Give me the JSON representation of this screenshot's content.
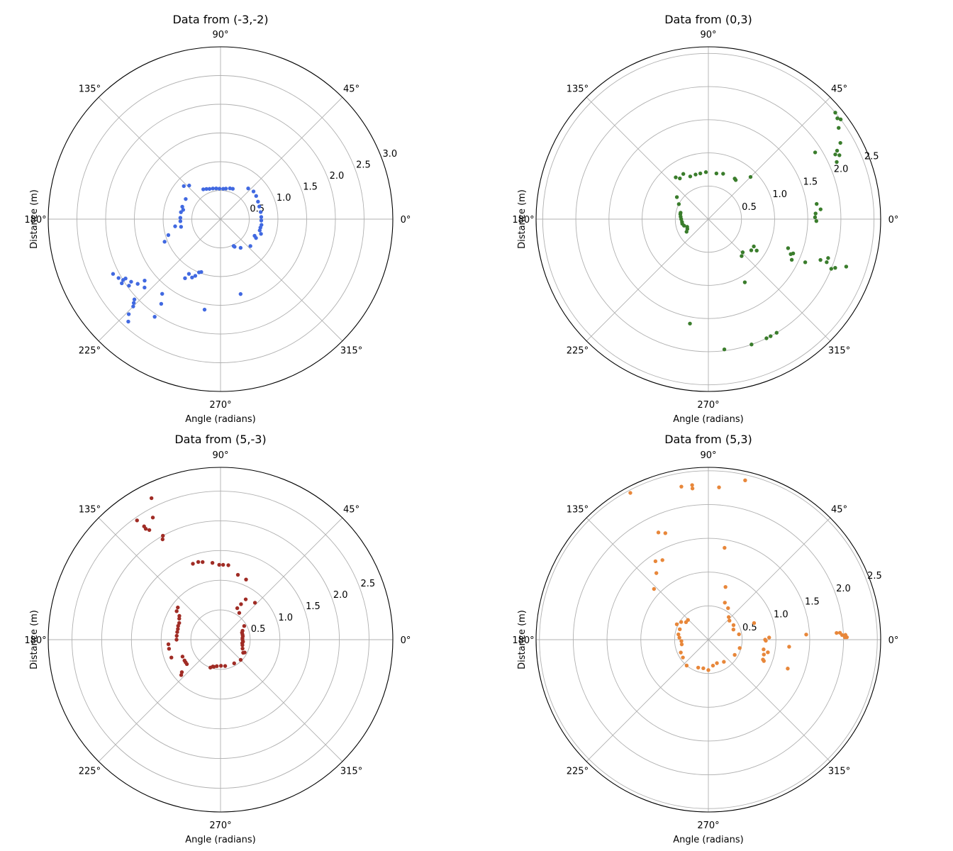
{
  "chart_data": [
    {
      "type": "scatter",
      "polar": true,
      "title": "Data from (-3,-2)",
      "xlabel": "Angle (radians)",
      "ylabel": "Distance (m)",
      "angle_ticks": [
        "0°",
        "45°",
        "90°",
        "135°",
        "180°",
        "225°",
        "270°",
        "315°"
      ],
      "r_ticks": [
        "0.5",
        "1.0",
        "1.5",
        "2.0",
        "2.5",
        "3.0"
      ],
      "rlim": [
        0,
        3.0
      ],
      "grid": true,
      "color": "#4169e1",
      "points_theta_deg_r": [
        [
          68,
          0.57
        ],
        [
          73,
          0.56
        ],
        [
          80,
          0.54
        ],
        [
          85,
          0.53
        ],
        [
          92,
          0.53
        ],
        [
          98,
          0.54
        ],
        [
          104,
          0.55
        ],
        [
          110,
          0.56
        ],
        [
          115,
          0.58
        ],
        [
          120,
          0.6
        ],
        [
          48,
          0.72
        ],
        [
          40,
          0.75
        ],
        [
          33,
          0.74
        ],
        [
          25,
          0.72
        ],
        [
          18,
          0.71
        ],
        [
          10,
          0.71
        ],
        [
          3,
          0.71
        ],
        [
          -2,
          0.71
        ],
        [
          -8,
          0.72
        ],
        [
          -12,
          0.71
        ],
        [
          -16,
          0.71
        ],
        [
          -20,
          0.75
        ],
        [
          133,
          0.8
        ],
        [
          138,
          0.86
        ],
        [
          150,
          0.7
        ],
        [
          162,
          0.7
        ],
        [
          166,
          0.67
        ],
        [
          170,
          0.7
        ],
        [
          178,
          0.7
        ],
        [
          183,
          0.7
        ],
        [
          189,
          0.8
        ],
        [
          191,
          0.7
        ],
        [
          197,
          0.95
        ],
        [
          202,
          1.05
        ],
        [
          -26,
          0.66
        ],
        [
          -28,
          0.7
        ],
        [
          -42,
          0.7
        ],
        [
          -55,
          0.61
        ],
        [
          -63,
          0.54
        ],
        [
          -64,
          0.52
        ],
        [
          207,
          2.1
        ],
        [
          210,
          2.05
        ],
        [
          212,
          2.0
        ],
        [
          212,
          1.95
        ],
        [
          215,
          1.9
        ],
        [
          218,
          1.83
        ],
        [
          213,
          2.05
        ],
        [
          216,
          1.97
        ],
        [
          219,
          1.7
        ],
        [
          222,
          1.78
        ],
        [
          223,
          2.05
        ],
        [
          224,
          2.1
        ],
        [
          225,
          2.15
        ],
        [
          226,
          2.3
        ],
        [
          228,
          2.4
        ],
        [
          232,
          1.65
        ],
        [
          235,
          1.8
        ],
        [
          236,
          2.05
        ],
        [
          239,
          1.2
        ],
        [
          240,
          1.1
        ],
        [
          244,
          1.13
        ],
        [
          246,
          1.08
        ],
        [
          248,
          1.0
        ],
        [
          250,
          0.98
        ],
        [
          -100,
          1.6
        ],
        [
          -75,
          1.35
        ]
      ]
    },
    {
      "type": "scatter",
      "polar": true,
      "title": "Data from (0,3)",
      "xlabel": "Angle (radians)",
      "ylabel": "Distance (m)",
      "angle_ticks": [
        "0°",
        "45°",
        "90°",
        "135°",
        "180°",
        "225°",
        "270°",
        "315°"
      ],
      "r_ticks": [
        "0.5",
        "1.0",
        "1.5",
        "2.0",
        "2.5"
      ],
      "rlim": [
        0,
        2.6
      ],
      "grid": true,
      "color": "#3a7d2c",
      "points_theta_deg_r": [
        [
          45,
          0.9
        ],
        [
          55,
          0.72
        ],
        [
          57,
          0.73
        ],
        [
          72,
          0.72
        ],
        [
          80,
          0.7
        ],
        [
          93,
          0.71
        ],
        [
          100,
          0.7
        ],
        [
          106,
          0.7
        ],
        [
          113,
          0.7
        ],
        [
          119,
          0.78
        ],
        [
          125,
          0.75
        ],
        [
          128,
          0.8
        ],
        [
          145,
          0.58
        ],
        [
          153,
          0.5
        ],
        [
          167,
          0.43
        ],
        [
          170,
          0.43
        ],
        [
          175,
          0.42
        ],
        [
          180,
          0.41
        ],
        [
          186,
          0.4
        ],
        [
          190,
          0.4
        ],
        [
          195,
          0.38
        ],
        [
          200,
          0.34
        ],
        [
          205,
          0.35
        ],
        [
          210,
          0.38
        ],
        [
          -31,
          0.8
        ],
        [
          -33,
          0.87
        ],
        [
          -36,
          0.8
        ],
        [
          -44,
          0.72
        ],
        [
          -48,
          0.75
        ],
        [
          -60,
          1.1
        ],
        [
          32,
          1.9
        ],
        [
          35,
          2.4
        ],
        [
          37,
          2.5
        ],
        [
          38,
          2.47
        ],
        [
          40,
          2.5
        ],
        [
          30,
          2.3
        ],
        [
          28,
          2.2
        ],
        [
          27,
          2.15
        ],
        [
          26,
          2.2
        ],
        [
          24,
          2.12
        ],
        [
          8,
          1.65
        ],
        [
          5,
          1.7
        ],
        [
          3,
          1.62
        ],
        [
          1,
          1.61
        ],
        [
          -1,
          1.63
        ],
        [
          -20,
          1.28
        ],
        [
          -22,
          1.38
        ],
        [
          -23,
          1.35
        ],
        [
          -26,
          1.4
        ],
        [
          -24,
          1.6
        ],
        [
          -20,
          1.8
        ],
        [
          -20,
          1.9
        ],
        [
          -18,
          1.9
        ],
        [
          -22,
          2.0
        ],
        [
          -21,
          2.05
        ],
        [
          -19,
          2.2
        ],
        [
          -59,
          2.0
        ],
        [
          -62,
          2.0
        ],
        [
          -64,
          2.0
        ],
        [
          -71,
          2.0
        ],
        [
          -83,
          1.98
        ],
        [
          -100,
          1.6
        ]
      ]
    },
    {
      "type": "scatter",
      "polar": true,
      "title": "Data from (5,-3)",
      "xlabel": "Angle (radians)",
      "ylabel": "Distance (m)",
      "angle_ticks": [
        "0°",
        "45°",
        "90°",
        "135°",
        "180°",
        "225°",
        "270°",
        "315°"
      ],
      "r_ticks": [
        "0.5",
        "1.0",
        "1.5",
        "2.0",
        "2.5"
      ],
      "rlim": [
        0,
        2.9
      ],
      "grid": true,
      "color": "#a02c25",
      "points_theta_deg_r": [
        [
          55,
          0.55
        ],
        [
          62,
          0.6
        ],
        [
          60,
          0.69
        ],
        [
          58,
          0.8
        ],
        [
          47,
          0.85
        ],
        [
          67,
          1.1
        ],
        [
          75,
          1.13
        ],
        [
          84,
          1.26
        ],
        [
          88,
          1.26
        ],
        [
          91,
          1.26
        ],
        [
          96,
          1.3
        ],
        [
          103,
          1.34
        ],
        [
          106,
          1.36
        ],
        [
          110,
          1.36
        ],
        [
          30,
          0.46
        ],
        [
          22,
          0.4
        ],
        [
          18,
          0.38
        ],
        [
          13,
          0.38
        ],
        [
          9,
          0.38
        ],
        [
          4,
          0.37
        ],
        [
          0,
          0.37
        ],
        [
          -5,
          0.38
        ],
        [
          -9,
          0.37
        ],
        [
          -14,
          0.38
        ],
        [
          -22,
          0.4
        ],
        [
          -28,
          0.46
        ],
        [
          -30,
          0.44
        ],
        [
          -45,
          0.48
        ],
        [
          -60,
          0.46
        ],
        [
          -80,
          0.45
        ],
        [
          -89,
          0.44
        ],
        [
          -98,
          0.45
        ],
        [
          -104,
          0.47
        ],
        [
          -106,
          0.47
        ],
        [
          -110,
          0.5
        ],
        [
          143,
          0.9
        ],
        [
          147,
          0.88
        ],
        [
          150,
          0.8
        ],
        [
          153,
          0.78
        ],
        [
          158,
          0.75
        ],
        [
          162,
          0.75
        ],
        [
          166,
          0.74
        ],
        [
          170,
          0.74
        ],
        [
          175,
          0.74
        ],
        [
          180,
          0.74
        ],
        [
          185,
          0.88
        ],
        [
          190,
          0.88
        ],
        [
          200,
          0.88
        ],
        [
          204,
          0.7
        ],
        [
          210,
          0.7
        ],
        [
          213,
          0.7
        ],
        [
          216,
          0.7
        ],
        [
          220,
          0.85
        ],
        [
          222,
          0.89
        ],
        [
          123,
          2.2
        ],
        [
          124,
          2.25
        ],
        [
          124,
          2.3
        ],
        [
          125,
          2.45
        ],
        [
          119,
          2.35
        ],
        [
          116,
          2.65
        ],
        [
          119,
          2.0
        ],
        [
          120,
          1.95
        ]
      ]
    },
    {
      "type": "scatter",
      "polar": true,
      "title": "Data from (5,3)",
      "xlabel": "Angle (radians)",
      "ylabel": "Distance (m)",
      "angle_ticks": [
        "0°",
        "45°",
        "90°",
        "135°",
        "180°",
        "225°",
        "270°",
        "315°"
      ],
      "r_ticks": [
        "0.5",
        "1.0",
        "1.5",
        "2.0",
        "2.5"
      ],
      "rlim": [
        0,
        2.55
      ],
      "grid": true,
      "color": "#e8873a",
      "points_theta_deg_r": [
        [
          100,
          2.3
        ],
        [
          96,
          2.3
        ],
        [
          96,
          2.25
        ],
        [
          86,
          2.26
        ],
        [
          77,
          2.42
        ],
        [
          118,
          2.46
        ],
        [
          112,
          1.7
        ],
        [
          115,
          1.75
        ],
        [
          120,
          1.36
        ],
        [
          124,
          1.4
        ],
        [
          128,
          1.25
        ],
        [
          137,
          1.1
        ],
        [
          80,
          1.38
        ],
        [
          72,
          0.82
        ],
        [
          66,
          0.6
        ],
        [
          58,
          0.55
        ],
        [
          48,
          0.45
        ],
        [
          42,
          0.42
        ],
        [
          30,
          0.43
        ],
        [
          22,
          0.4
        ],
        [
          10,
          0.46
        ],
        [
          -15,
          0.48
        ],
        [
          -30,
          0.45
        ],
        [
          -55,
          0.4
        ],
        [
          -70,
          0.37
        ],
        [
          -80,
          0.39
        ],
        [
          -90,
          0.45
        ],
        [
          -100,
          0.43
        ],
        [
          -110,
          0.44
        ],
        [
          -130,
          0.5
        ],
        [
          -145,
          0.46
        ],
        [
          -155,
          0.45
        ],
        [
          160,
          0.45
        ],
        [
          170,
          0.45
        ],
        [
          176,
          0.43
        ],
        [
          183,
          0.4
        ],
        [
          190,
          0.4
        ],
        [
          154,
          0.52
        ],
        [
          147,
          0.48
        ],
        [
          142,
          0.42
        ],
        [
          136,
          0.42
        ],
        [
          20,
          0.72
        ],
        [
          2,
          0.9
        ],
        [
          0,
          0.84
        ],
        [
          -1,
          0.85
        ],
        [
          -10,
          0.83
        ],
        [
          -15,
          0.85
        ],
        [
          -12,
          0.9
        ],
        [
          -21,
          0.88
        ],
        [
          -20,
          0.86
        ],
        [
          -5,
          1.2
        ],
        [
          3,
          1.45
        ],
        [
          3,
          1.9
        ],
        [
          3,
          1.95
        ],
        [
          2,
          1.98
        ],
        [
          2,
          2.03
        ],
        [
          1,
          2.02
        ],
        [
          1,
          2.05
        ],
        [
          -20,
          1.25
        ]
      ]
    }
  ]
}
